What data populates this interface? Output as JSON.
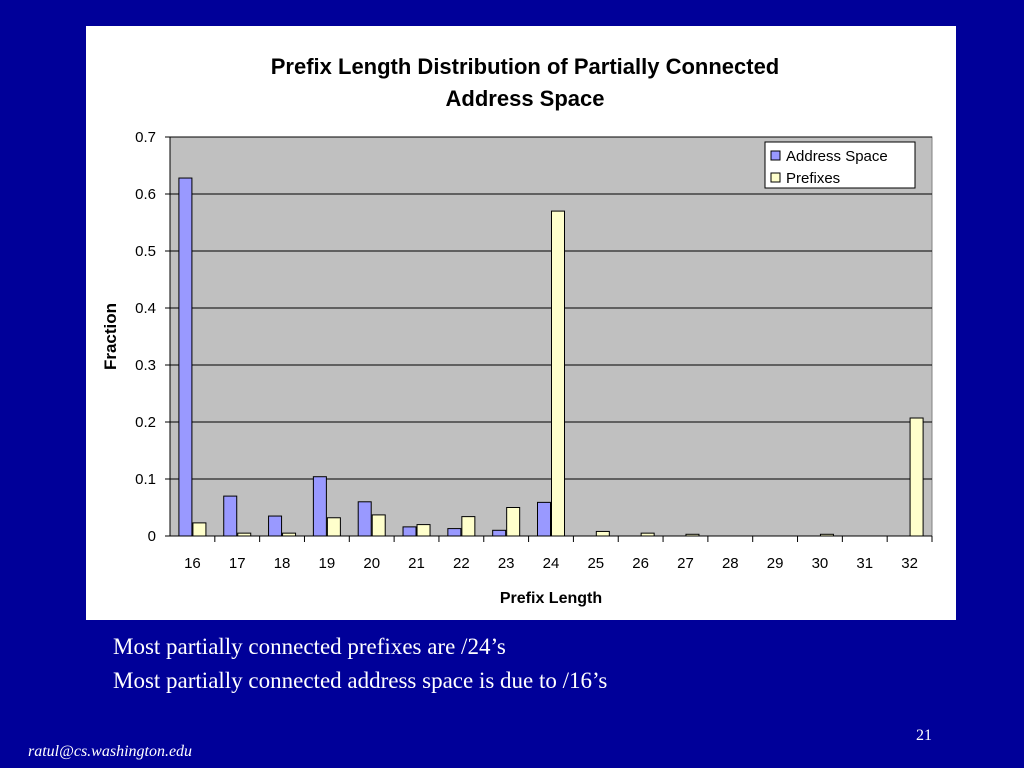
{
  "slide": {
    "captions": [
      "Most partially connected prefixes are /24’s",
      "Most partially connected address space is due to /16’s"
    ],
    "slide_number": "21",
    "footer": "ratul@cs.washington.edu",
    "background_color": "#000099"
  },
  "chart_data": {
    "type": "bar",
    "title": [
      "Prefix Length Distribution of Partially Connected",
      "Address Space"
    ],
    "xlabel": "Prefix Length",
    "ylabel": "Fraction",
    "categories": [
      "16",
      "17",
      "18",
      "19",
      "20",
      "21",
      "22",
      "23",
      "24",
      "25",
      "26",
      "27",
      "28",
      "29",
      "30",
      "31",
      "32"
    ],
    "series": [
      {
        "name": "Address Space",
        "color": "#9999ff",
        "values": [
          0.628,
          0.07,
          0.035,
          0.104,
          0.06,
          0.016,
          0.013,
          0.01,
          0.059,
          0,
          0,
          0,
          0,
          0,
          0,
          0,
          0
        ]
      },
      {
        "name": "Prefixes",
        "color": "#ffffcc",
        "values": [
          0.023,
          0.005,
          0.005,
          0.032,
          0.037,
          0.02,
          0.034,
          0.05,
          0.57,
          0.008,
          0.005,
          0.003,
          0,
          0,
          0.003,
          0,
          0.207
        ]
      }
    ],
    "ylim": [
      0,
      0.7
    ],
    "yticks": [
      "0",
      "0.1",
      "0.2",
      "0.3",
      "0.4",
      "0.5",
      "0.6",
      "0.7"
    ],
    "grid": true,
    "plot_background": "#c0c0c0",
    "legend_position": "top-right"
  }
}
